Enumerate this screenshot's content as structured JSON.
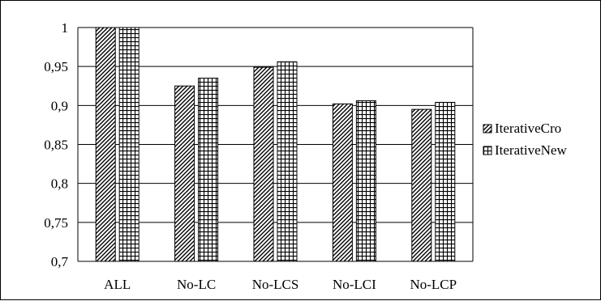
{
  "chart_data": {
    "type": "bar",
    "title": "",
    "xlabel": "",
    "ylabel": "",
    "categories": [
      "ALL",
      "No-LC",
      "No-LCS",
      "No-LCI",
      "No-LCP"
    ],
    "series": [
      {
        "name": "IterativeCro",
        "values": [
          1.0,
          0.925,
          0.949,
          0.902,
          0.895
        ],
        "pattern": "diagonal-hatch"
      },
      {
        "name": "IterativeNew",
        "values": [
          1.0,
          0.935,
          0.956,
          0.906,
          0.904
        ],
        "pattern": "grid-hatch"
      }
    ],
    "ylim": [
      0.7,
      1.0
    ],
    "yticks": [
      0.7,
      0.75,
      0.8,
      0.85,
      0.9,
      0.95,
      1.0
    ],
    "ytick_labels": [
      "0,7",
      "0,75",
      "0,8",
      "0,85",
      "0,9",
      "0,95",
      "1"
    ],
    "grid": true,
    "legend_position": "right",
    "colors": {
      "bar_stroke": "#000000",
      "grid": "#000000",
      "background": "#ffffff"
    }
  }
}
